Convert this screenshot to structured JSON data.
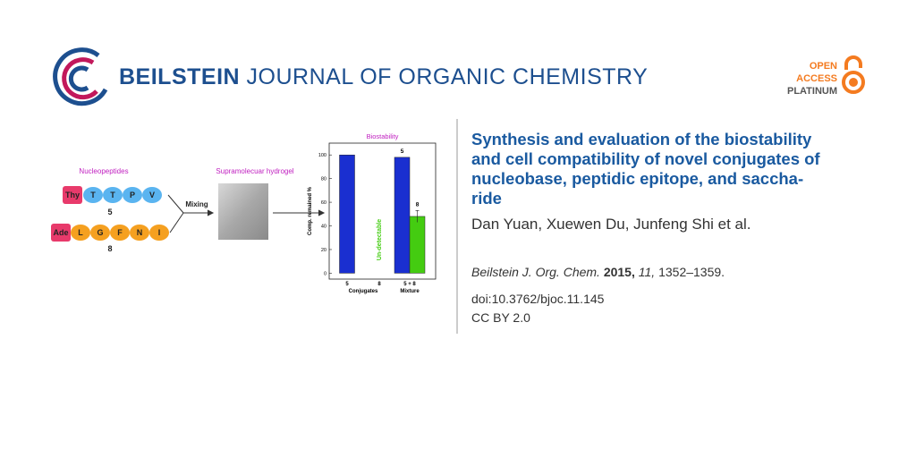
{
  "header": {
    "journal_bold": "BEILSTEIN",
    "journal_rest": "JOURNAL OF ORGANIC CHEMISTRY",
    "badge": [
      "OPEN",
      "ACCESS",
      "PLATINUM"
    ]
  },
  "graphic": {
    "nucleopeptides_label": "Nucleopeptides",
    "peptide_5": {
      "cap": "Thy",
      "residues": [
        "T",
        "T",
        "P",
        "V"
      ],
      "label": "5"
    },
    "peptide_8": {
      "cap": "Ade",
      "residues": [
        "L",
        "G",
        "F",
        "N",
        "I"
      ],
      "label": "8"
    },
    "mixing": "Mixing",
    "hydrogel_label": "Supramolecuar hydrogel",
    "chart_data": {
      "type": "bar",
      "title": "Biostability",
      "y_label": "Comp. remained %",
      "categories": [
        "5",
        "8",
        "5 + 8"
      ],
      "groups": [
        "Conjugates",
        "Mixture"
      ],
      "series": [
        {
          "name": "5",
          "color": "#1a2fd0",
          "values": [
            100,
            null,
            98
          ]
        },
        {
          "name": "8",
          "color": "#44cc11",
          "values": [
            null,
            null,
            48
          ],
          "errors": [
            null,
            null,
            5
          ]
        }
      ],
      "annotation": "Un-detectable",
      "ylim": [
        -5,
        110
      ],
      "yticks": [
        0,
        20,
        40,
        60,
        80,
        100
      ]
    }
  },
  "article": {
    "title_lines": [
      "Synthesis and evaluation of the biostability",
      "and cell compatibility of novel conjugates of",
      "nucleobase, peptidic epitope, and saccha-",
      "ride"
    ],
    "authors": "Dan Yuan, Xuewen Du, Junfeng Shi et al.",
    "citation": {
      "journal": "Beilstein J. Org. Chem.",
      "year": "2015,",
      "volume": "11,",
      "pages": "1352–1359."
    },
    "doi": "doi:10.3762/bjoc.11.145",
    "license": "CC BY 2.0"
  }
}
